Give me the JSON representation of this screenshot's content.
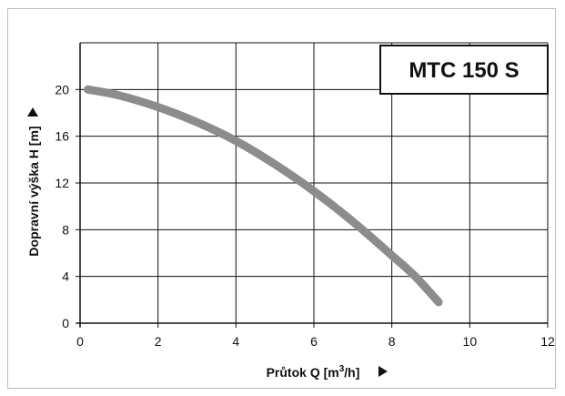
{
  "chart_data": {
    "type": "line",
    "badge": "MTC 150 S",
    "xlabel": "Průtok Q [m³/h]",
    "ylabel": "Dopravní výška H [m]",
    "xlim": [
      0,
      12
    ],
    "ylim": [
      0,
      24
    ],
    "x_ticks": [
      0,
      2,
      4,
      6,
      8,
      10,
      12
    ],
    "y_ticks": [
      0,
      4,
      8,
      12,
      16,
      20
    ],
    "grid": true,
    "series": [
      {
        "color": "#8c8c8c",
        "x": [
          0.2,
          1,
          2,
          3,
          4,
          5,
          6,
          7,
          8,
          8.6,
          9.2
        ],
        "y": [
          20.0,
          19.5,
          18.5,
          17.2,
          15.6,
          13.6,
          11.3,
          8.7,
          5.8,
          4.0,
          1.8
        ]
      }
    ]
  }
}
